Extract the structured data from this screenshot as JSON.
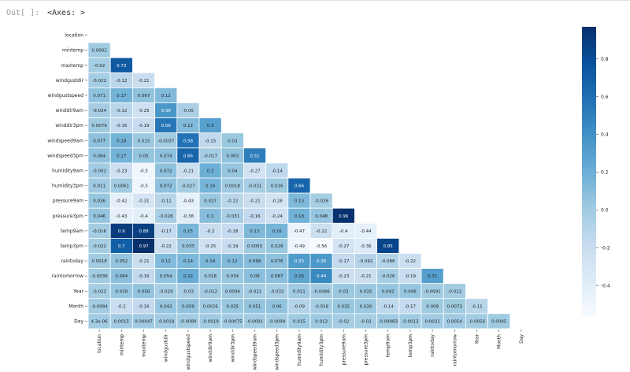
{
  "notebook": {
    "prompt": "Out[ ]:",
    "output_text": "<Axes: >"
  },
  "chart_data": {
    "type": "heatmap",
    "title": "",
    "labels": [
      "location",
      "mintemp",
      "maxtemp",
      "windgustdir",
      "windgustspeed",
      "winddir9am",
      "winddir3pm",
      "windspeed9am",
      "windspeed3pm",
      "humidity9am",
      "humidity3pm",
      "pressure9am",
      "pressure3pm",
      "temp9am",
      "temp3pm",
      "raintoday",
      "raintomorrow",
      "Year",
      "Month",
      "Day"
    ],
    "values": [
      [],
      [
        "0.0062"
      ],
      [
        "-0.02",
        "0.73"
      ],
      [
        "-0.022",
        "-0.12",
        "-0.21"
      ],
      [
        "0.071",
        "0.17",
        "0.067",
        "0.12"
      ],
      [
        "-0.024",
        "-0.12",
        "-0.25",
        "0.36",
        "-0.05"
      ],
      [
        "0.0079",
        "-0.16",
        "-0.19",
        "0.56",
        "0.12",
        "0.3"
      ],
      [
        "0.077",
        "0.18",
        "0.015",
        "-0.0037",
        "0.58",
        "-0.15",
        "0.03"
      ],
      [
        "0.064",
        "0.17",
        "0.05",
        "0.074",
        "0.66",
        "-0.017",
        "0.063",
        "0.51"
      ],
      [
        "-0.002",
        "-0.23",
        "-0.5",
        "0.072",
        "-0.21",
        "0.2",
        "0.04",
        "-0.27",
        "-0.14"
      ],
      [
        "0.011",
        "0.0061",
        "-0.5",
        "0.072",
        "-0.027",
        "0.16",
        "0.0018",
        "-0.031",
        "0.016",
        "0.66"
      ],
      [
        "0.036",
        "-0.42",
        "-0.31",
        "-0.11",
        "-0.43",
        "0.027",
        "-0.12",
        "-0.21",
        "-0.28",
        "0.13",
        "-0.026"
      ],
      [
        "0.046",
        "-0.43",
        "-0.4",
        "-0.028",
        "-0.38",
        "0.1",
        "-0.031",
        "-0.16",
        "-0.24",
        "0.18",
        "0.048",
        "0.96"
      ],
      [
        "-0.016",
        "0.9",
        "0.88",
        "-0.17",
        "0.15",
        "-0.2",
        "-0.18",
        "0.13",
        "0.16",
        "-0.47",
        "-0.22",
        "-0.4",
        "-0.44"
      ],
      [
        "-0.022",
        "0.7",
        "0.97",
        "-0.22",
        "0.033",
        "-0.25",
        "-0.19",
        "0.0055",
        "0.029",
        "-0.49",
        "-0.56",
        "-0.27",
        "-0.36",
        "0.85"
      ],
      [
        "0.0018",
        "0.052",
        "-0.21",
        "0.12",
        "0.14",
        "0.14",
        "0.12",
        "0.098",
        "0.076",
        "0.33",
        "0.35",
        "-0.17",
        "-0.092",
        "-0.088",
        "-0.22"
      ],
      [
        "-0.0036",
        "0.084",
        "-0.16",
        "0.054",
        "0.22",
        "0.018",
        "0.034",
        "0.09",
        "0.087",
        "0.26",
        "0.44",
        "-0.23",
        "-0.21",
        "-0.026",
        "-0.19",
        "0.31"
      ],
      [
        "-0.022",
        "0.039",
        "0.058",
        "-0.029",
        "-0.03",
        "-0.012",
        "0.0094",
        "-0.021",
        "-0.032",
        "0.011",
        "-0.0086",
        "0.03",
        "0.025",
        "0.042",
        "0.046",
        "-0.0091",
        "-0.012"
      ],
      [
        "-0.0084",
        "-0.2",
        "-0.16",
        "0.042",
        "0.059",
        "0.0026",
        "0.035",
        "0.051",
        "0.06",
        "-0.09",
        "-0.018",
        "0.035",
        "0.026",
        "-0.14",
        "-0.17",
        "0.008",
        "0.0073",
        "-0.11"
      ],
      [
        "4.3e-06",
        "0.0015",
        "0.00047",
        "-0.0018",
        "-0.0089",
        "-0.0019",
        "-0.00075",
        "-0.0091",
        "-0.0099",
        "0.015",
        "0.013",
        "-0.02",
        "-0.02",
        "-0.00083",
        "-0.0013",
        "0.0031",
        "0.0054",
        "-0.0056",
        "0.0095"
      ]
    ],
    "mask": "upper triangle including diagonal",
    "colormap": "Blues",
    "colorbar": {
      "range": [
        -0.56,
        0.97
      ],
      "ticks": [
        "0.8",
        "0.6",
        "0.4",
        "0.2",
        "0.0",
        "-0.2",
        "-0.4"
      ]
    },
    "colors": {
      "low": "#f7fbff",
      "high": "#08306b",
      "grid": "#ffffff"
    }
  }
}
